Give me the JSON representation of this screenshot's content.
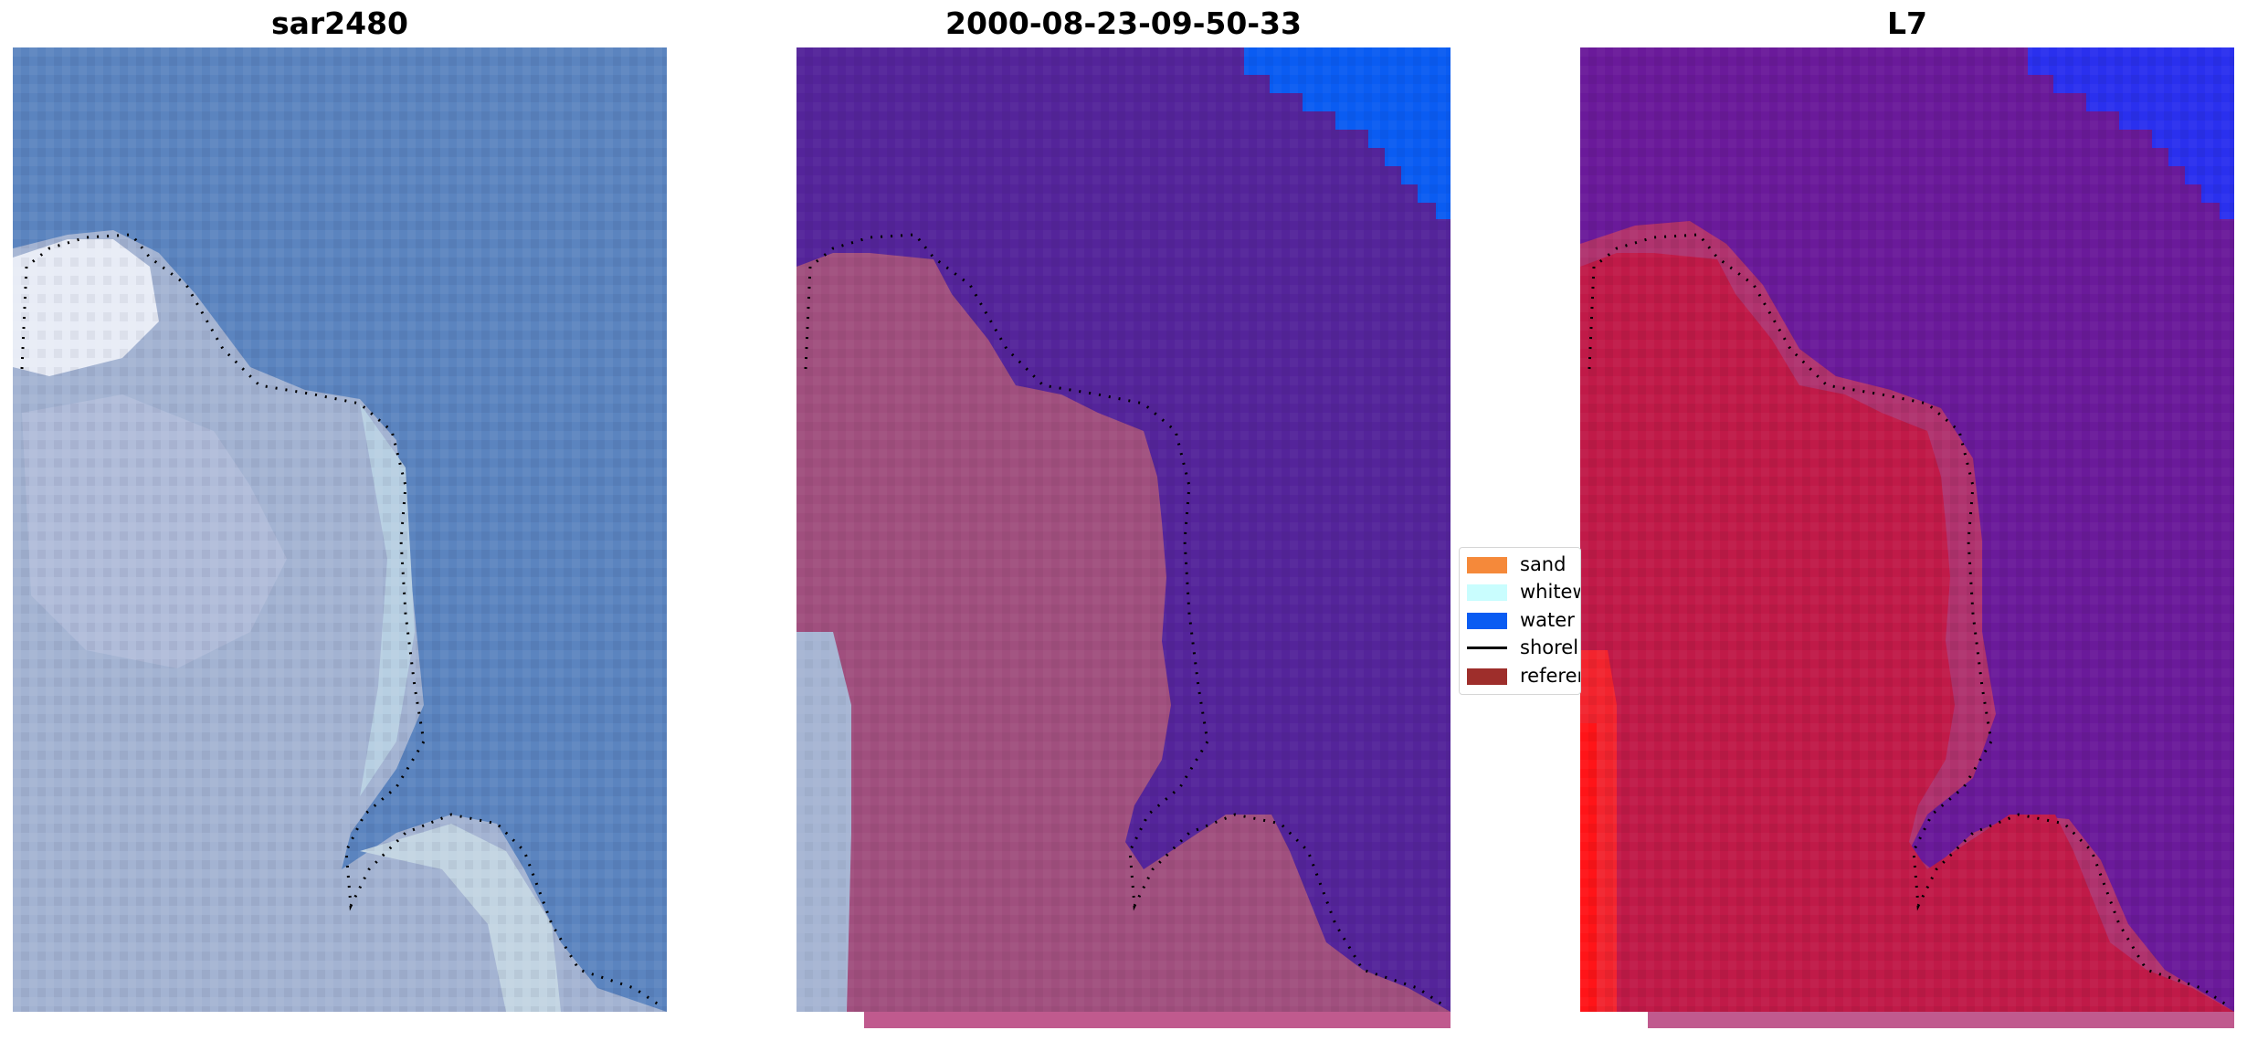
{
  "panels": [
    {
      "id": "rgb",
      "title": "sar2480"
    },
    {
      "id": "classified",
      "title": "2000-08-23-09-50-33"
    },
    {
      "id": "index",
      "title": "L7"
    }
  ],
  "legend": {
    "items": [
      {
        "label": "sand",
        "color": "#f5893a",
        "kind": "patch"
      },
      {
        "label": "whitew",
        "color": "#c9fdfe",
        "kind": "patch"
      },
      {
        "label": "water",
        "color": "#0a5cf2",
        "kind": "patch"
      },
      {
        "label": "shorel",
        "color": "#000000",
        "kind": "line"
      },
      {
        "label": "referen",
        "color": "#9e2e2b",
        "kind": "patch"
      }
    ]
  },
  "colors": {
    "sea_rgb": "#5a82bd",
    "land_rgb": "#9fb0d0",
    "sea_class": "#54249a",
    "land_class": "#a0507e",
    "water_class": "#0a5cf2",
    "sea_index": "#6a1a9a",
    "land_index": "#c01a48",
    "water_index": "#2a30ee"
  }
}
